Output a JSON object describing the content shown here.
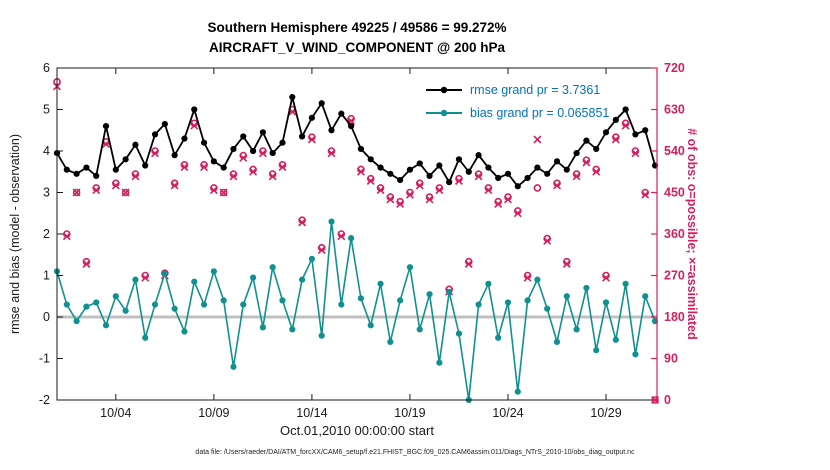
{
  "footer": {
    "text": "data file: /Users/raeder/DAI/ATM_forcXX/CAM6_setup/f.e21.FHIST_BGC.f09_025.CAM6assim.011/Diags_NTrS_2010-10/obs_diag_output.nc"
  },
  "chart_data": {
    "type": "line",
    "title": "Southern Hemisphere 49225 / 49586 = 99.272%",
    "subtitle": "AIRCRAFT_V_WIND_COMPONENT @ 200 hPa",
    "xlabel": "Oct.01,2010 00:00:00 start",
    "ylabel_left": "rmse and bias (model - observation)",
    "ylabel_right": "# of obs: o=possible; ×=assimilated",
    "stats": {
      "assimilated_total": 49225,
      "possible_total": 49586,
      "percent": 99.272,
      "rmse_grand": 3.7361,
      "bias_grand": 0.065851
    },
    "x_range": [
      1,
      31.6
    ],
    "y_left_range": [
      -2,
      6
    ],
    "y_right_range": [
      0,
      720
    ],
    "x_ticks": [
      {
        "value": 4,
        "label": "10/04"
      },
      {
        "value": 9,
        "label": "10/09"
      },
      {
        "value": 14,
        "label": "10/14"
      },
      {
        "value": 19,
        "label": "10/19"
      },
      {
        "value": 24,
        "label": "10/24"
      },
      {
        "value": 29,
        "label": "10/29"
      }
    ],
    "y_left_ticks": [
      -2,
      -1,
      0,
      1,
      2,
      3,
      4,
      5,
      6
    ],
    "y_right_ticks": [
      0,
      90,
      180,
      270,
      360,
      450,
      540,
      630,
      720
    ],
    "zero_line": {
      "y": 0,
      "color": "#c0c0c0"
    },
    "colors": {
      "rmse": "#000000",
      "bias": "#109090",
      "obs": "#d42060",
      "axis": "#1a1a1a",
      "legend_text": "#0072bd"
    },
    "x": [
      1,
      1.5,
      2,
      2.5,
      3,
      3.5,
      4,
      4.5,
      5,
      5.5,
      6,
      6.5,
      7,
      7.5,
      8,
      8.5,
      9,
      9.5,
      10,
      10.5,
      11,
      11.5,
      12,
      12.5,
      13,
      13.5,
      14,
      14.5,
      15,
      15.5,
      16,
      16.5,
      17,
      17.5,
      18,
      18.5,
      19,
      19.5,
      20,
      20.5,
      21,
      21.5,
      22,
      22.5,
      23,
      23.5,
      24,
      24.5,
      25,
      25.5,
      26,
      26.5,
      27,
      27.5,
      28,
      28.5,
      29,
      29.5,
      30,
      30.5,
      31,
      31.5
    ],
    "series": [
      {
        "name": "rmse",
        "axis": "left",
        "marker": "filled-circle",
        "values": [
          3.95,
          3.55,
          3.45,
          3.6,
          3.4,
          4.6,
          3.55,
          3.8,
          4.15,
          3.65,
          4.4,
          4.65,
          3.9,
          4.3,
          5,
          4.2,
          3.75,
          3.6,
          4.05,
          4.35,
          4,
          4.45,
          3.95,
          4.2,
          5.3,
          4.35,
          4.8,
          5.15,
          4.5,
          4.9,
          4.6,
          4.05,
          3.8,
          3.6,
          3.45,
          3.3,
          3.55,
          3.7,
          3.4,
          3.65,
          3.25,
          3.8,
          3.5,
          3.9,
          3.6,
          3.35,
          3.45,
          3.15,
          3.35,
          3.6,
          3.45,
          3.75,
          3.55,
          3.95,
          4.25,
          4.05,
          4.45,
          4.75,
          5,
          4.4,
          4.5,
          3.65
        ]
      },
      {
        "name": "bias",
        "axis": "left",
        "marker": "filled-circle",
        "values": [
          1.1,
          0.3,
          -0.1,
          0.25,
          0.35,
          -0.2,
          0.5,
          0.15,
          0.9,
          -0.5,
          0.3,
          1.05,
          0.2,
          -0.35,
          0.85,
          0.3,
          1.1,
          0.4,
          -1.2,
          0.3,
          0.95,
          -0.25,
          1.2,
          0.4,
          -0.3,
          0.9,
          1.4,
          -0.45,
          2.3,
          0.3,
          1.9,
          0.45,
          -0.2,
          0.8,
          -0.6,
          0.4,
          1.2,
          -0.3,
          0.55,
          -1.1,
          0.6,
          -0.4,
          -2,
          0.3,
          0.8,
          -0.5,
          0.35,
          -1.8,
          0.4,
          0.9,
          0.2,
          -0.6,
          0.5,
          -0.3,
          0.7,
          -0.8,
          0.35,
          -0.55,
          0.8,
          -0.9,
          0.5,
          -0.1
        ]
      },
      {
        "name": "possible",
        "axis": "right",
        "marker": "open-circle",
        "values": [
          690,
          360,
          450,
          300,
          460,
          560,
          470,
          450,
          490,
          270,
          540,
          275,
          470,
          510,
          600,
          510,
          460,
          450,
          490,
          530,
          500,
          540,
          490,
          510,
          630,
          390,
          570,
          330,
          540,
          360,
          610,
          500,
          480,
          460,
          440,
          430,
          450,
          470,
          440,
          460,
          240,
          480,
          300,
          490,
          460,
          430,
          440,
          410,
          270,
          460,
          350,
          470,
          300,
          490,
          520,
          500,
          270,
          570,
          600,
          540,
          450,
          0
        ]
      },
      {
        "name": "assimilated",
        "axis": "right",
        "marker": "x",
        "values": [
          680,
          355,
          450,
          295,
          455,
          555,
          465,
          450,
          485,
          265,
          535,
          270,
          465,
          505,
          595,
          505,
          455,
          450,
          485,
          525,
          495,
          535,
          485,
          505,
          625,
          385,
          565,
          325,
          535,
          355,
          605,
          495,
          475,
          455,
          435,
          425,
          445,
          465,
          435,
          455,
          235,
          475,
          295,
          485,
          455,
          425,
          435,
          405,
          265,
          565,
          345,
          465,
          295,
          485,
          515,
          495,
          265,
          565,
          595,
          535,
          445,
          0
        ]
      }
    ],
    "legend": {
      "position": "top-right",
      "entries": [
        {
          "label": "rmse grand pr = 3.7361",
          "line_color": "#000000",
          "text_color": "#0072bd"
        },
        {
          "label": "bias grand pr = 0.065851",
          "line_color": "#109090",
          "text_color": "#0072bd"
        }
      ]
    }
  }
}
